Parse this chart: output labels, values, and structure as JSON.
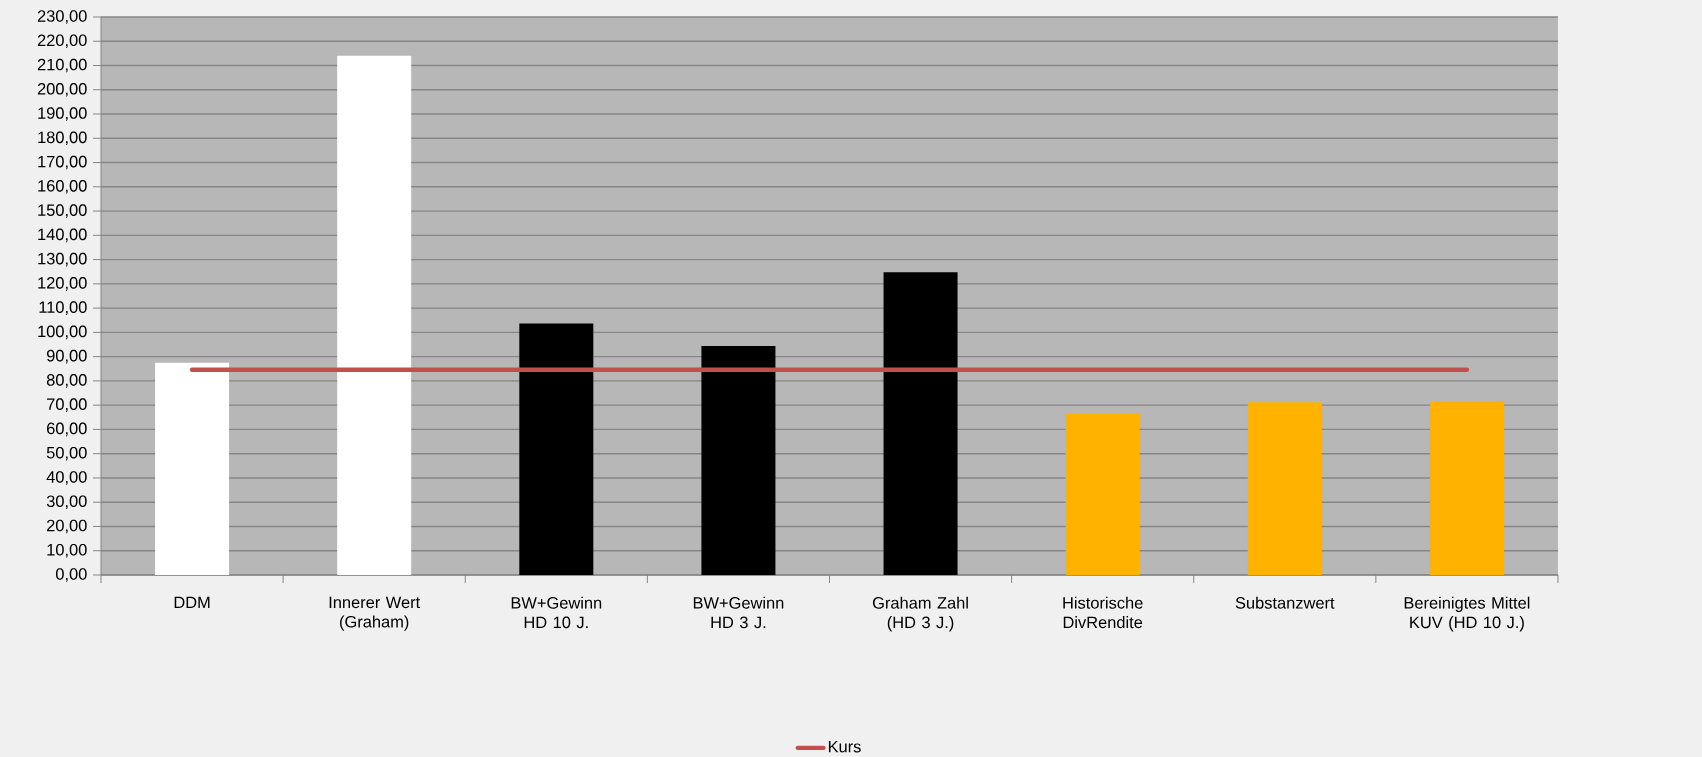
{
  "chart_data": {
    "type": "bar",
    "categories": [
      "DDM",
      "Innerer Wert (Graham)",
      "BW+Gewinn HD 10 J.",
      "BW+Gewinn HD 3 J.",
      "Graham Zahl (HD 3 J.)",
      "Historische DivRendite",
      "Substanzwert",
      "Bereinigtes Mittel KUV (HD 10 J.)"
    ],
    "series": [
      {
        "colors": [
          "#ffffff",
          "#ffffff",
          "#000000",
          "#000000",
          "#000000",
          "#ffb300",
          "#ffb300",
          "#ffb300"
        ],
        "values": [
          87.5,
          214,
          103.7,
          94.4,
          124.8,
          66.6,
          71.2,
          71.7
        ]
      },
      {
        "type": "line",
        "name": "Kurs",
        "color": "#c0504d",
        "values": [
          84.6,
          84.6,
          84.6,
          84.6,
          84.6,
          84.6,
          84.6,
          84.6
        ]
      }
    ],
    "ylim": [
      0,
      230
    ],
    "yticks": [
      {
        "value": 0,
        "label": "0,00"
      },
      {
        "value": 10,
        "label": "10,00"
      },
      {
        "value": 20,
        "label": "20,00"
      },
      {
        "value": 30,
        "label": "30,00"
      },
      {
        "value": 40,
        "label": "40,00"
      },
      {
        "value": 50,
        "label": "50,00"
      },
      {
        "value": 60,
        "label": "60,00"
      },
      {
        "value": 70,
        "label": "70,00"
      },
      {
        "value": 80,
        "label": "80,00"
      },
      {
        "value": 90,
        "label": "90,00"
      },
      {
        "value": 100,
        "label": "100,00"
      },
      {
        "value": 110,
        "label": "110,00"
      },
      {
        "value": 120,
        "label": "120,00"
      },
      {
        "value": 130,
        "label": "130,00"
      },
      {
        "value": 140,
        "label": "140,00"
      },
      {
        "value": 150,
        "label": "150,00"
      },
      {
        "value": 160,
        "label": "160,00"
      },
      {
        "value": 170,
        "label": "170,00"
      },
      {
        "value": 180,
        "label": "180,00"
      },
      {
        "value": 190,
        "label": "190,00"
      },
      {
        "value": 200,
        "label": "200,00"
      },
      {
        "value": 210,
        "label": "210,00"
      },
      {
        "value": 220,
        "label": "220,00"
      },
      {
        "value": 230,
        "label": "230,00"
      }
    ],
    "grid": "y",
    "legend": "bottom"
  }
}
